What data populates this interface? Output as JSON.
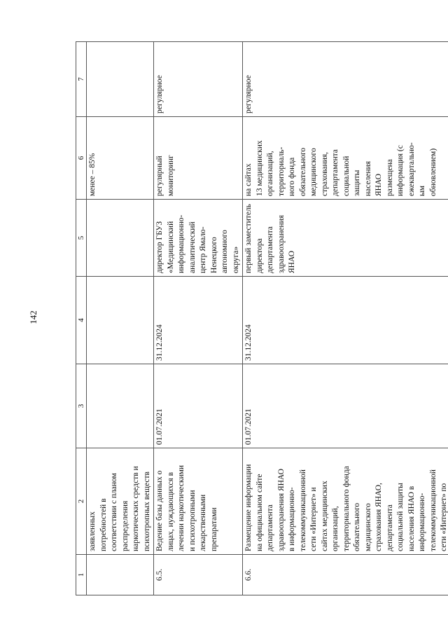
{
  "page_number": "142",
  "table": {
    "header": [
      "1",
      "2",
      "3",
      "4",
      "5",
      "6",
      "7"
    ],
    "rows": [
      {
        "cells": [
          "",
          "заявленных\nпотребностей в\nсоответствии с планом\nраспределения\nнаркотических средств и\nпсихотропных веществ",
          "",
          "",
          "",
          "менее – 85%",
          ""
        ]
      },
      {
        "cells": [
          "6.5.",
          "Ведение базы данных о\nлицах, нуждающихся в\nлечении наркотическими\nи психотропными\nлекарственными\nпрепаратами",
          "01.07.2021",
          "31.12.2024",
          "директор ГБУЗ\n«Медицинский\nинформационно-\nаналитический\nцентр Ямало-\nНенецкого\nавтономного\nокруга»",
          "регулярный\nмониторинг",
          "регулярное"
        ]
      },
      {
        "cells": [
          "6.6.",
          "Размещение информации\nна официальном сайте\nдепартамента\nздравоохранения ЯНАО\nв информационно-\nтелекоммуникационной\nсети «Интернет» и\nсайтах медицинских\nорганизаций,\nтерриториального фонда\nобязательного\nмедицинского\nстрахования ЯНАО,\nдепартамента\nсоциальной защиты\nнаселения ЯНАО в\nинформационно-\nтелекоммуникационной\nсети «Интернет» по",
          "01.07.2021",
          "31.12.2024",
          "первый заместитель\nдиректора\nдепартамента\nздравоохранения\nЯНАО",
          "на сайтах\n13 медицинских\nорганизаций,\nтерриториаль-\nного фонда\nобязательного\nмедицинского\nстрахования,\nдепартамента\nсоциальной\nзащиты\nнаселения\nЯНАО\nразмещена\nинформация (с\nежеквартально-\nым\nобновлением)",
          "регулярное"
        ]
      }
    ]
  }
}
